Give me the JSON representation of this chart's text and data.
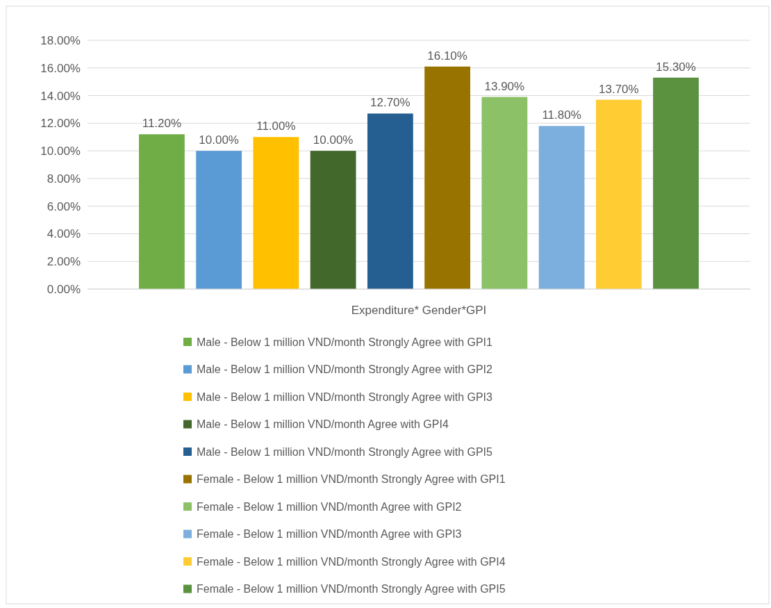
{
  "chart_data": {
    "type": "bar",
    "categories": [
      "Expenditure* Gender*GPI"
    ],
    "series": [
      {
        "name": "Male - Below 1 million VND/month Strongly Agree with GPI1",
        "color": "#70ad47",
        "values": [
          11.2
        ],
        "value_labels": [
          "11.20%"
        ]
      },
      {
        "name": "Male - Below 1 million VND/month Strongly Agree with GPI2",
        "color": "#5b9bd5",
        "values": [
          10.0
        ],
        "value_labels": [
          "10.00%"
        ]
      },
      {
        "name": "Male - Below 1 million VND/month Strongly Agree with GPI3",
        "color": "#ffc000",
        "values": [
          11.0
        ],
        "value_labels": [
          "11.00%"
        ]
      },
      {
        "name": "Male - Below 1 million VND/month Agree with GPI4",
        "color": "#43682b",
        "values": [
          10.0
        ],
        "value_labels": [
          "10.00%"
        ]
      },
      {
        "name": "Male - Below 1 million VND/month Strongly Agree with GPI5",
        "color": "#255e91",
        "values": [
          12.7
        ],
        "value_labels": [
          "12.70%"
        ]
      },
      {
        "name": "Female - Below 1 million VND/month Strongly Agree with GPI1",
        "color": "#997300",
        "values": [
          16.1
        ],
        "value_labels": [
          "16.10%"
        ]
      },
      {
        "name": "Female - Below 1 million VND/month Agree with GPI2",
        "color": "#8cc168",
        "values": [
          13.9
        ],
        "value_labels": [
          "13.90%"
        ]
      },
      {
        "name": "Female - Below 1 million VND/month Agree with GPI3",
        "color": "#7cafdd",
        "values": [
          11.8
        ],
        "value_labels": [
          "11.80%"
        ]
      },
      {
        "name": "Female - Below 1 million VND/month Strongly Agree with GPI4",
        "color": "#ffcd33",
        "values": [
          13.7
        ],
        "value_labels": [
          "13.70%"
        ]
      },
      {
        "name": "Female - Below 1 million VND/month Strongly Agree with GPI5",
        "color": "#5b9240",
        "values": [
          15.3
        ],
        "value_labels": [
          "15.30%"
        ]
      }
    ],
    "ylim": [
      0,
      18
    ],
    "yticks": [
      {
        "value": 0,
        "label": "0.00%"
      },
      {
        "value": 2,
        "label": "2.00%"
      },
      {
        "value": 4,
        "label": "4.00%"
      },
      {
        "value": 6,
        "label": "6.00%"
      },
      {
        "value": 8,
        "label": "8.00%"
      },
      {
        "value": 10,
        "label": "10.00%"
      },
      {
        "value": 12,
        "label": "12.00%"
      },
      {
        "value": 14,
        "label": "14.00%"
      },
      {
        "value": 16,
        "label": "16.00%"
      },
      {
        "value": 18,
        "label": "18.00%"
      }
    ],
    "grid": "y",
    "legend": "bottom"
  }
}
